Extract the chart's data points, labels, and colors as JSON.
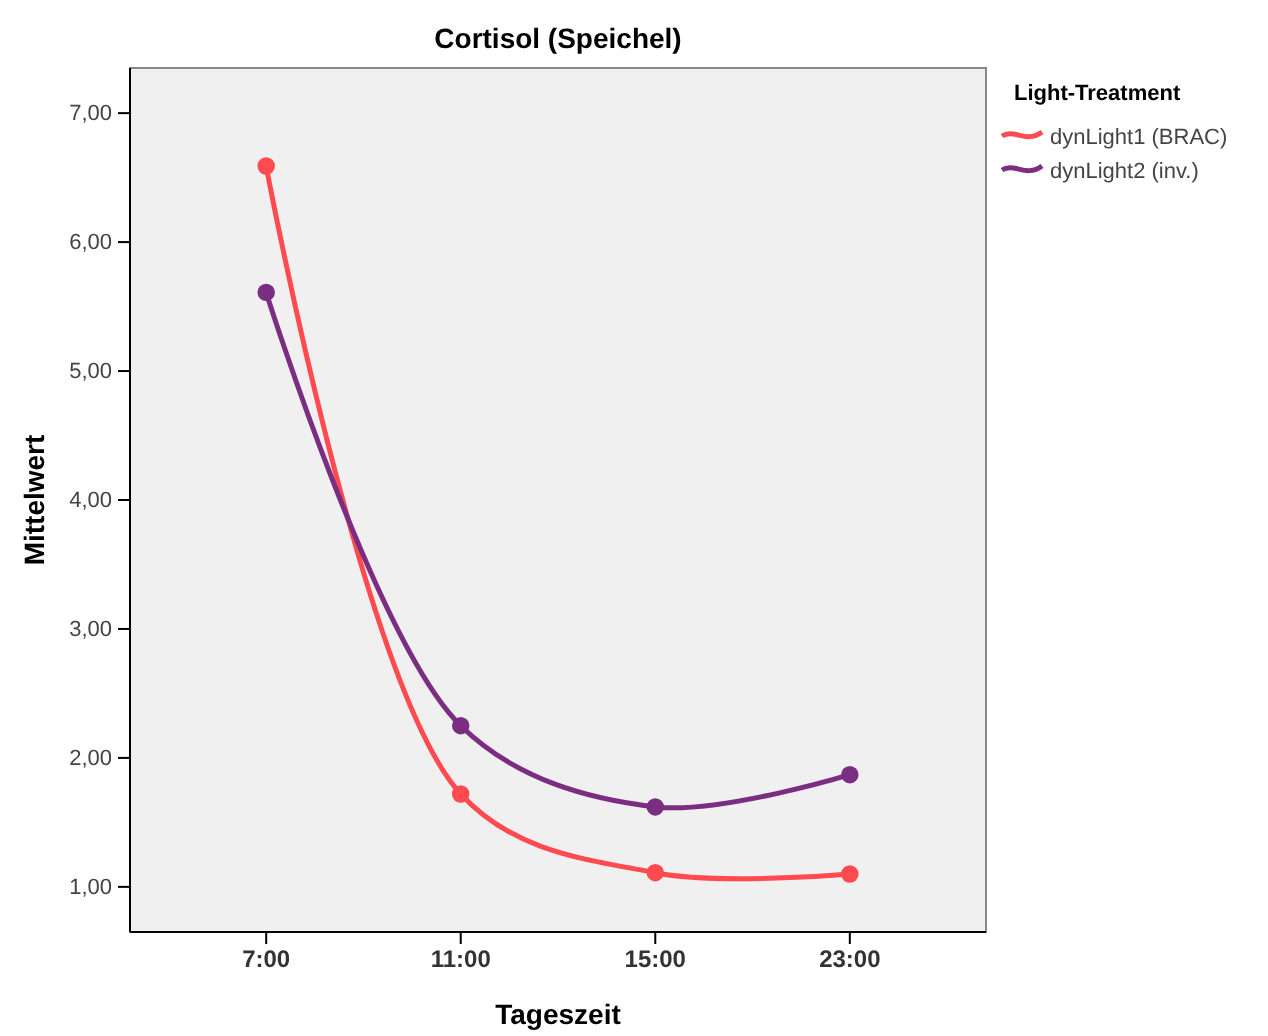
{
  "chart_data": {
    "type": "line",
    "title": "Cortisol (Speichel)",
    "xlabel": "Tageszeit",
    "ylabel": "Mittelwert",
    "legend_title": "Light-Treatment",
    "categories": [
      "7:00",
      "11:00",
      "15:00",
      "23:00"
    ],
    "series": [
      {
        "name": "dynLight1 (BRAC)",
        "color": "#ff4a4f",
        "values": [
          6.59,
          1.72,
          1.11,
          1.1
        ]
      },
      {
        "name": "dynLight2 (inv.)",
        "color": "#7b2d82",
        "values": [
          5.61,
          2.25,
          1.62,
          1.87
        ]
      }
    ],
    "ylim": [
      0.65,
      7.35
    ],
    "yticks": [
      {
        "value": 1,
        "label": "1,00"
      },
      {
        "value": 2,
        "label": "2,00"
      },
      {
        "value": 3,
        "label": "3,00"
      },
      {
        "value": 4,
        "label": "4,00"
      },
      {
        "value": 5,
        "label": "5,00"
      },
      {
        "value": 6,
        "label": "6,00"
      },
      {
        "value": 7,
        "label": "7,00"
      }
    ],
    "grid": false,
    "legend": "right",
    "marker": "circle",
    "line_style": "solid"
  }
}
